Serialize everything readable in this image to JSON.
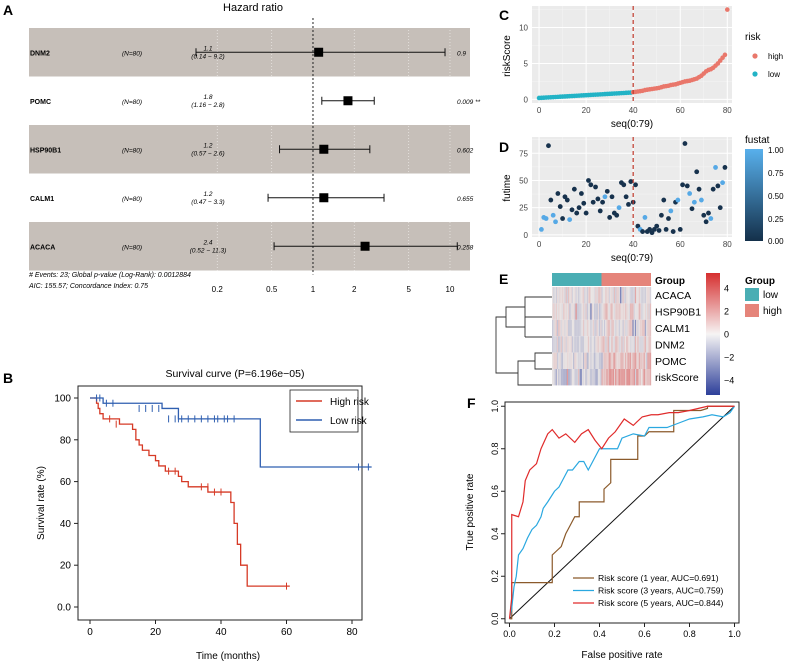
{
  "panels": {
    "A": {
      "letter": "A"
    },
    "B": {
      "letter": "B"
    },
    "C": {
      "letter": "C"
    },
    "D": {
      "letter": "D"
    },
    "E": {
      "letter": "E"
    },
    "F": {
      "letter": "F"
    }
  },
  "chart_data": [
    {
      "id": "A",
      "type": "forest",
      "title": "Hazard ratio",
      "xscale": "log",
      "xlim": [
        0.14,
        14
      ],
      "ticks": [
        "0.2",
        "0.5",
        "1",
        "2",
        "5",
        "10"
      ],
      "rows": [
        {
          "gene": "DNM2",
          "n": "(N=80)",
          "hr": 1.1,
          "lo": 0.14,
          "hi": 9.2,
          "hr_label": "1.1",
          "ci_label": "(0.14 − 9.2)",
          "p": "0.9"
        },
        {
          "gene": "POMC",
          "n": "(N=80)",
          "hr": 1.8,
          "lo": 1.16,
          "hi": 2.8,
          "hr_label": "1.8",
          "ci_label": "(1.16 − 2.8)",
          "p": "0.009 **"
        },
        {
          "gene": "HSP90B1",
          "n": "(N=80)",
          "hr": 1.2,
          "lo": 0.57,
          "hi": 2.6,
          "hr_label": "1.2",
          "ci_label": "(0.57 − 2.6)",
          "p": "0.602"
        },
        {
          "gene": "CALM1",
          "n": "(N=80)",
          "hr": 1.2,
          "lo": 0.47,
          "hi": 3.3,
          "hr_label": "1.2",
          "ci_label": "(0.47 − 3.3)",
          "p": "0.655"
        },
        {
          "gene": "ACACA",
          "n": "(N=80)",
          "hr": 2.4,
          "lo": 0.52,
          "hi": 11.3,
          "hr_label": "2.4",
          "ci_label": "(0.52 − 11.3)",
          "p": "0.258"
        }
      ],
      "footnote1": "# Events: 23; Global p-value (Log-Rank): 0.0012884",
      "footnote2": "AIC: 155.57; Concordance Index: 0.75"
    },
    {
      "id": "B",
      "type": "line",
      "title": "Survival curve (P=6.196e−05)",
      "xlabel": "Time (months)",
      "ylabel": "Survival rate (%)",
      "xlim": [
        0,
        88
      ],
      "ylim": [
        0,
        100
      ],
      "xticks": [
        "0",
        "20",
        "40",
        "60",
        "80"
      ],
      "yticks": [
        "0.0",
        "20",
        "40",
        "60",
        "80",
        "100"
      ],
      "legend": [
        "High risk",
        "Low risk"
      ],
      "colors": {
        "High risk": "#d63a26",
        "Low risk": "#2f5fb0"
      },
      "series": [
        {
          "name": "High risk",
          "x": [
            0,
            1,
            2,
            2.5,
            3,
            4,
            6,
            9,
            13,
            14,
            15,
            16,
            18,
            20,
            21,
            22,
            23,
            25,
            27,
            28,
            30,
            32,
            36,
            37,
            41,
            43,
            44,
            45,
            46,
            48,
            61
          ],
          "y": [
            100,
            100,
            97.5,
            95,
            92.5,
            90,
            90,
            87.5,
            85,
            80,
            77.5,
            75,
            72.5,
            70,
            67.5,
            67.5,
            65,
            65,
            62.5,
            60,
            57.5,
            57.5,
            55,
            55,
            55,
            50,
            40,
            30,
            20,
            10,
            10
          ],
          "censor_x": [
            6,
            8,
            24,
            26,
            34,
            36,
            38,
            40,
            60
          ],
          "censor_y": [
            90,
            87.5,
            65,
            65,
            57.5,
            57.5,
            55,
            55,
            10
          ]
        },
        {
          "name": "Low risk",
          "x": [
            0,
            1,
            4,
            8,
            22,
            27,
            51,
            52,
            86
          ],
          "y": [
            100,
            100,
            97.5,
            97.5,
            95,
            90,
            90,
            67,
            67
          ],
          "censor_x": [
            2,
            3,
            5,
            7,
            15,
            17,
            19,
            21,
            24,
            26,
            27,
            28,
            30,
            32,
            34,
            36,
            38,
            39,
            41,
            42,
            44,
            82,
            85
          ],
          "censor_y": [
            100,
            100,
            97.5,
            97.5,
            95,
            95,
            95,
            95,
            90,
            90,
            90,
            90,
            90,
            90,
            90,
            90,
            90,
            90,
            90,
            90,
            90,
            67,
            67
          ]
        }
      ]
    },
    {
      "id": "C",
      "type": "scatter",
      "xlabel": "seq(0:79)",
      "ylabel": "riskScore",
      "xlim": [
        -3,
        82
      ],
      "ylim": [
        -0.5,
        13
      ],
      "xticks": [
        "0",
        "20",
        "40",
        "60",
        "80"
      ],
      "yticks": [
        "0",
        "5",
        "10"
      ],
      "legend_title": "risk",
      "legend": [
        "high",
        "low"
      ],
      "colors": {
        "high": "#e9776b",
        "low": "#22b3c6"
      },
      "cutoff_x": 40,
      "x": [
        0,
        79
      ],
      "low_y_start": 0.2,
      "low_y_end": 0.95,
      "high_y": [
        1.0,
        1.05,
        1.1,
        1.15,
        1.2,
        1.3,
        1.35,
        1.4,
        1.45,
        1.5,
        1.55,
        1.6,
        1.7,
        1.8,
        1.85,
        1.9,
        2.0,
        2.05,
        2.1,
        2.2,
        2.3,
        2.4,
        2.5,
        2.55,
        2.6,
        2.7,
        2.8,
        2.9,
        3.1,
        3.3,
        3.6,
        3.9,
        4.1,
        4.2,
        4.4,
        4.7,
        5.0,
        5.4,
        5.8,
        6.2,
        12.5
      ]
    },
    {
      "id": "D",
      "type": "scatter",
      "xlabel": "seq(0:79)",
      "ylabel": "futime",
      "xlim": [
        -3,
        82
      ],
      "ylim": [
        -2,
        90
      ],
      "xticks": [
        "0",
        "20",
        "40",
        "60",
        "80"
      ],
      "yticks": [
        "0",
        "25",
        "50",
        "75"
      ],
      "legend_title": "fustat",
      "legend": [
        "1.00",
        "0.75",
        "0.50",
        "0.25",
        "0.00"
      ],
      "cutoff_x": 40,
      "x": [
        1,
        2,
        3,
        4,
        5,
        6,
        7,
        8,
        9,
        10,
        11,
        12,
        13,
        14,
        15,
        16,
        17,
        18,
        19,
        20,
        21,
        22,
        23,
        24,
        25,
        26,
        27,
        28,
        29,
        30,
        31,
        32,
        33,
        34,
        35,
        36,
        37,
        38,
        39,
        40,
        41,
        42,
        43,
        44,
        45,
        46,
        47,
        48,
        49,
        50,
        51,
        52,
        53,
        54,
        55,
        56,
        57,
        58,
        59,
        60,
        61,
        62,
        63,
        64,
        65,
        66,
        67,
        68,
        69,
        70,
        71,
        72,
        73,
        74,
        75,
        76,
        77,
        78,
        79
      ],
      "y": [
        5,
        16,
        15,
        82,
        32,
        18,
        12,
        38,
        26,
        15,
        35,
        32,
        14,
        23,
        42,
        20,
        25,
        38,
        29,
        20,
        50,
        46,
        30,
        44,
        33,
        22,
        30,
        35,
        40,
        16,
        35,
        20,
        18,
        25,
        48,
        46,
        35,
        28,
        49,
        30,
        46,
        8,
        5,
        3,
        16,
        3,
        5,
        2,
        5,
        8,
        4,
        18,
        32,
        5,
        15,
        22,
        3,
        30,
        32,
        5,
        46,
        84,
        45,
        38,
        24,
        30,
        58,
        42,
        32,
        18,
        12,
        20,
        15,
        42,
        62,
        45,
        25,
        48,
        62
      ],
      "status": [
        1,
        1,
        1,
        0,
        0,
        1,
        1,
        0,
        0,
        0,
        0,
        0,
        1,
        0,
        0,
        0,
        0,
        0,
        0,
        0,
        0,
        0,
        0,
        0,
        0,
        0,
        0,
        1,
        0,
        0,
        0,
        0,
        0,
        1,
        0,
        0,
        0,
        0,
        0,
        0,
        0,
        0,
        1,
        0,
        1,
        0,
        0,
        0,
        0,
        0,
        0,
        0,
        0,
        0,
        0,
        1,
        0,
        0,
        1,
        0,
        0,
        0,
        0,
        1,
        0,
        1,
        0,
        0,
        1,
        0,
        0,
        0,
        1,
        0,
        1,
        0,
        0,
        1,
        0
      ]
    },
    {
      "id": "E",
      "type": "heatmap",
      "rows": [
        "ACACA",
        "HSP90B1",
        "CALM1",
        "DNM2",
        "POMC",
        "riskScore"
      ],
      "columns": 80,
      "group_title": "Group",
      "annotation_label": "Group",
      "group_legend": [
        "low",
        "high"
      ],
      "group_colors": {
        "low": "#4aaeb4",
        "high": "#e5847a"
      },
      "low_count": 40,
      "color_ticks": [
        "4",
        "2",
        "0",
        "−2",
        "−4"
      ],
      "row_levels_low": [
        0.1,
        -0.1,
        0.0,
        -0.1,
        -0.3,
        -0.6
      ],
      "row_levels_high": [
        0.2,
        0.3,
        0.1,
        0.3,
        0.8,
        1.2
      ]
    },
    {
      "id": "F",
      "type": "line",
      "xlabel": "False positive rate",
      "ylabel": "True positive rate",
      "xlim": [
        -0.02,
        1.02
      ],
      "ylim": [
        -0.02,
        1.02
      ],
      "xticks": [
        "0.0",
        "0.2",
        "0.4",
        "0.6",
        "0.8",
        "1.0"
      ],
      "yticks": [
        "0.0",
        "0.2",
        "0.4",
        "0.6",
        "0.8",
        "1.0"
      ],
      "series": [
        {
          "name": "Risk score (1 year, AUC=0.691)",
          "color": "#8b5a2b",
          "x": [
            0,
            0.01,
            0.01,
            0.19,
            0.19,
            0.21,
            0.23,
            0.25,
            0.27,
            0.29,
            0.31,
            0.31,
            0.42,
            0.42,
            0.45,
            0.45,
            0.57,
            0.57,
            0.6,
            0.62,
            0.73,
            0.73,
            0.85,
            0.88,
            0.88,
            0.95,
            1.0
          ],
          "y": [
            0,
            0,
            0.17,
            0.17,
            0.3,
            0.32,
            0.34,
            0.4,
            0.44,
            0.48,
            0.48,
            0.55,
            0.55,
            0.61,
            0.64,
            0.75,
            0.75,
            0.86,
            0.86,
            0.88,
            0.88,
            0.98,
            0.98,
            0.99,
            1.0,
            1.0,
            1.0
          ]
        },
        {
          "name": "Risk score (3 years, AUC=0.759)",
          "color": "#2aa8e0",
          "x": [
            0,
            0.01,
            0.02,
            0.03,
            0.04,
            0.06,
            0.08,
            0.1,
            0.12,
            0.14,
            0.15,
            0.17,
            0.2,
            0.22,
            0.24,
            0.26,
            0.28,
            0.31,
            0.33,
            0.35,
            0.4,
            0.44,
            0.48,
            0.5,
            0.55,
            0.6,
            0.62,
            0.7,
            0.75,
            0.8,
            0.86,
            0.9,
            0.95,
            0.98,
            1.0
          ],
          "y": [
            0,
            0.05,
            0.15,
            0.2,
            0.3,
            0.33,
            0.38,
            0.42,
            0.44,
            0.48,
            0.52,
            0.55,
            0.6,
            0.62,
            0.66,
            0.7,
            0.7,
            0.74,
            0.74,
            0.7,
            0.8,
            0.8,
            0.8,
            0.85,
            0.87,
            0.86,
            0.9,
            0.9,
            0.92,
            0.94,
            0.95,
            0.96,
            0.95,
            0.97,
            1.0
          ]
        },
        {
          "name": "Risk score (5 years, AUC=0.844)",
          "color": "#e02b2b",
          "x": [
            0,
            0.01,
            0.01,
            0.04,
            0.06,
            0.07,
            0.09,
            0.12,
            0.14,
            0.17,
            0.19,
            0.22,
            0.25,
            0.29,
            0.32,
            0.35,
            0.38,
            0.41,
            0.44,
            0.47,
            0.51,
            0.55,
            0.59,
            0.63,
            0.66,
            0.71,
            0.75,
            0.8,
            0.84,
            0.88,
            0.92,
            1.0
          ],
          "y": [
            0,
            0.1,
            0.49,
            0.48,
            0.55,
            0.65,
            0.7,
            0.73,
            0.8,
            0.87,
            0.89,
            0.85,
            0.87,
            0.83,
            0.87,
            0.89,
            0.84,
            0.8,
            0.85,
            0.88,
            0.94,
            0.91,
            0.95,
            0.96,
            0.96,
            0.97,
            0.97,
            0.98,
            0.99,
            1.0,
            1.0,
            1.0
          ]
        }
      ]
    }
  ]
}
